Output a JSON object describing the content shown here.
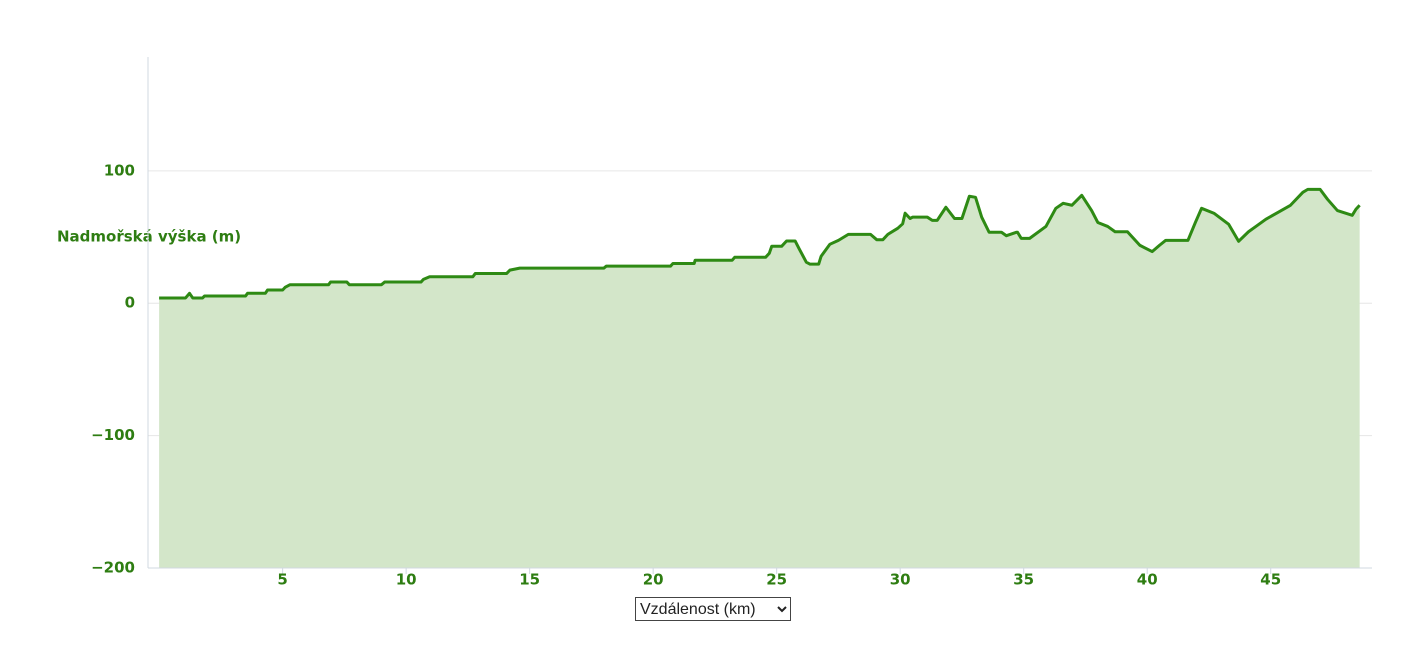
{
  "chart_data": {
    "type": "area",
    "y_label": "Nadmořská výška (m)",
    "x_label": "Vzdálenost (km)",
    "color": "#2e8a14",
    "fill": "#d3e6c9",
    "grid": true,
    "xlim": [
      -0.45,
      49.1
    ],
    "ylim": [
      -200,
      186
    ],
    "xticks": [
      5,
      10,
      15,
      20,
      25,
      30,
      35,
      40,
      45
    ],
    "yticks": [
      {
        "value": -200,
        "label": "−200"
      },
      {
        "value": -100,
        "label": "−100"
      },
      0,
      100
    ],
    "x": [
      0,
      1.07,
      1.23,
      1.36,
      1.76,
      1.84,
      3.5,
      3.58,
      4.3,
      4.39,
      5,
      5.1,
      5.3,
      6.86,
      6.94,
      7.6,
      7.7,
      9,
      9.13,
      10.6,
      10.7,
      10.95,
      12.7,
      12.8,
      14.07,
      14.2,
      14.6,
      18,
      18.1,
      20.7,
      20.8,
      21.66,
      21.7,
      23.2,
      23.3,
      24.55,
      24.7,
      24.8,
      25.2,
      25.4,
      25.75,
      25.9,
      26.2,
      26.35,
      26.7,
      26.8,
      27.15,
      27.5,
      27.9,
      28.8,
      29.05,
      29.3,
      29.5,
      29.9,
      30.1,
      30.2,
      30.4,
      30.5,
      31.1,
      31.3,
      31.5,
      31.85,
      32.2,
      32.5,
      32.8,
      33.05,
      33.3,
      33.6,
      34.1,
      34.3,
      34.7,
      34.75,
      34.9,
      35.24,
      35.9,
      36.3,
      36.6,
      36.95,
      37.35,
      37.75,
      38,
      38.4,
      38.7,
      39.2,
      39.7,
      40.2,
      40.5,
      40.75,
      41.65,
      41.95,
      42.2,
      42.7,
      43.3,
      43.7,
      44.1,
      44.4,
      44.8,
      45.3,
      45.8,
      46.3,
      46.5,
      47,
      47.3,
      47.7,
      48.3,
      48.45,
      48.6
    ],
    "values": [
      4,
      4,
      7.5,
      4,
      4,
      5.5,
      5.5,
      7.5,
      7.5,
      10,
      10,
      12,
      14,
      14,
      16,
      16,
      14,
      14,
      16,
      16,
      18,
      20,
      20,
      22.5,
      22.5,
      25,
      26.5,
      26.5,
      28,
      28,
      30,
      30,
      32.5,
      32.5,
      34.7,
      34.7,
      37.7,
      43,
      43,
      47,
      47,
      41.5,
      31,
      29.5,
      29.5,
      35.5,
      44.5,
      47.5,
      52,
      52,
      48,
      48,
      52,
      56.6,
      60,
      68,
      64,
      65,
      65,
      62.6,
      62.6,
      72.5,
      64,
      64,
      80.8,
      80,
      65,
      53.6,
      53.6,
      51,
      53.6,
      53.6,
      49,
      49,
      58,
      71.7,
      75.5,
      74,
      81.5,
      70,
      61,
      58,
      54,
      54,
      43.8,
      39,
      43.8,
      47.5,
      47.5,
      61,
      71.7,
      68,
      59.6,
      46.8,
      54,
      58,
      63.4,
      68.7,
      74,
      83.8,
      86,
      86,
      78.5,
      70,
      66.4,
      71,
      74
    ]
  }
}
